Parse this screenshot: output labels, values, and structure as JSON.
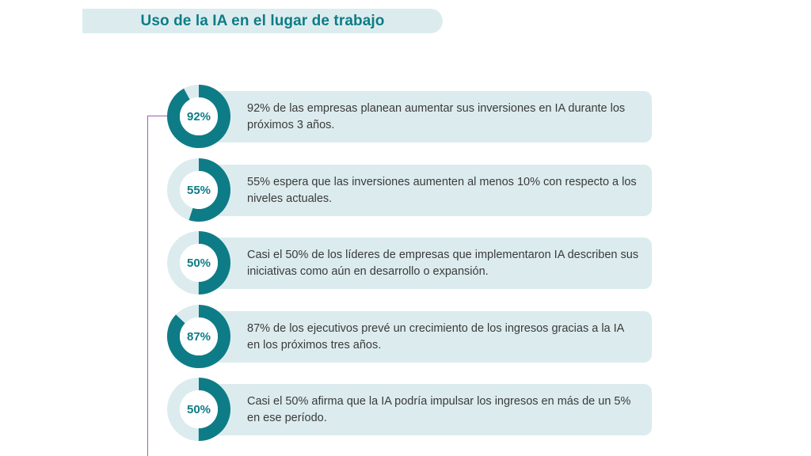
{
  "header": {
    "title": "Uso de la IA en el lugar de trabajo"
  },
  "colors": {
    "accent": "#0e7c86",
    "track": "#dcecee",
    "card": "#dcecee",
    "timeline": "#9b5fb4"
  },
  "stats": [
    {
      "value_label": "92%",
      "fraction": 0.92,
      "text": "92% de las empresas planean aumentar sus inversiones en IA durante los próximos 3 años."
    },
    {
      "value_label": "55%",
      "fraction": 0.55,
      "text": "55% espera que las inversiones aumenten al menos 10% con respecto a los niveles actuales."
    },
    {
      "value_label": "50%",
      "fraction": 0.5,
      "text": "Casi el 50% de los líderes de empresas que implementaron IA describen sus iniciativas como aún en desarrollo o expansión."
    },
    {
      "value_label": "87%",
      "fraction": 0.87,
      "text": "87% de los ejecutivos prevé un crecimiento de los ingresos gracias a la IA en los próximos tres años."
    },
    {
      "value_label": "50%",
      "fraction": 0.5,
      "text": "Casi el 50% afirma que la IA podría impulsar los ingresos en más de un 5% en ese período."
    }
  ]
}
